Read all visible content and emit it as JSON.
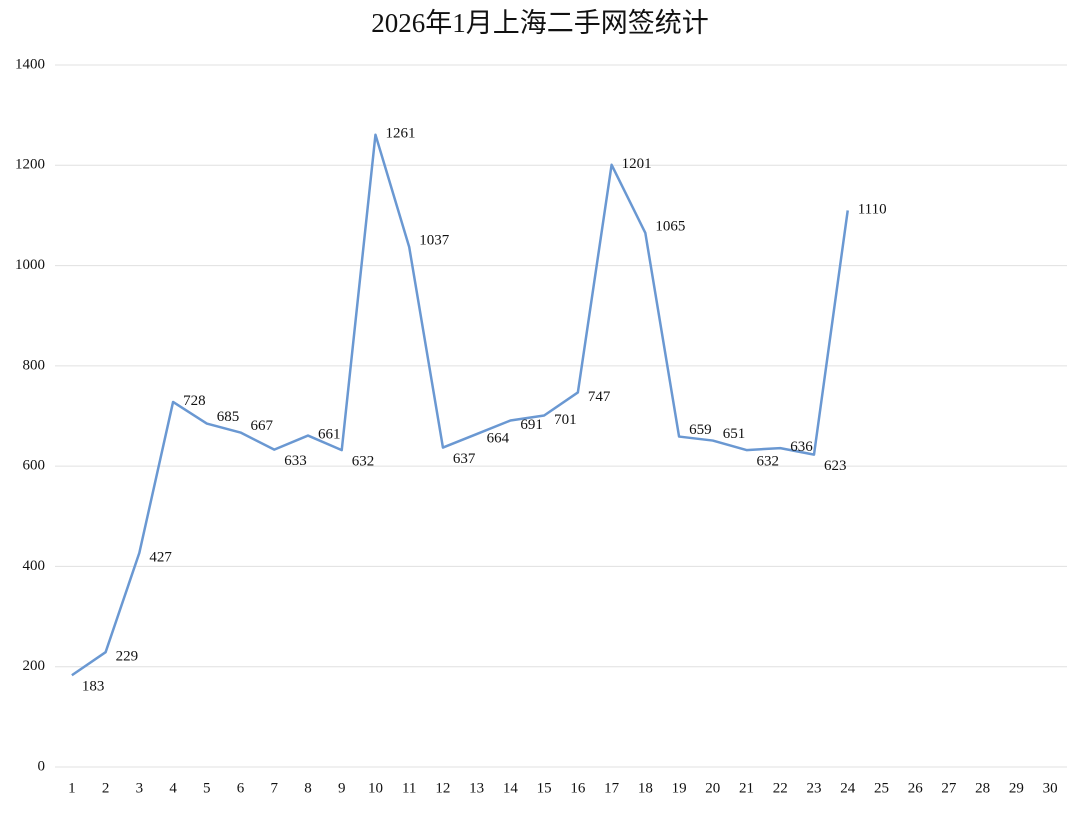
{
  "chart_data": {
    "type": "line",
    "title": "2026年1月上海二手网签统计",
    "categories": [
      "1",
      "2",
      "3",
      "4",
      "5",
      "6",
      "7",
      "8",
      "9",
      "10",
      "11",
      "12",
      "13",
      "14",
      "15",
      "16",
      "17",
      "18",
      "19",
      "20",
      "21",
      "22",
      "23",
      "24",
      "25",
      "26",
      "27",
      "28",
      "29",
      "30"
    ],
    "series": [
      {
        "color": "#6a98d2",
        "values": [
          183,
          229,
          427,
          728,
          685,
          667,
          633,
          661,
          632,
          1261,
          1037,
          637,
          664,
          691,
          701,
          747,
          1201,
          1065,
          659,
          651,
          632,
          636,
          623,
          1110,
          null,
          null,
          null,
          null,
          null,
          null
        ]
      }
    ],
    "ylim": [
      0,
      1400
    ],
    "yticks": [
      0,
      200,
      400,
      600,
      800,
      1000,
      1200,
      1400
    ],
    "grid": true
  }
}
